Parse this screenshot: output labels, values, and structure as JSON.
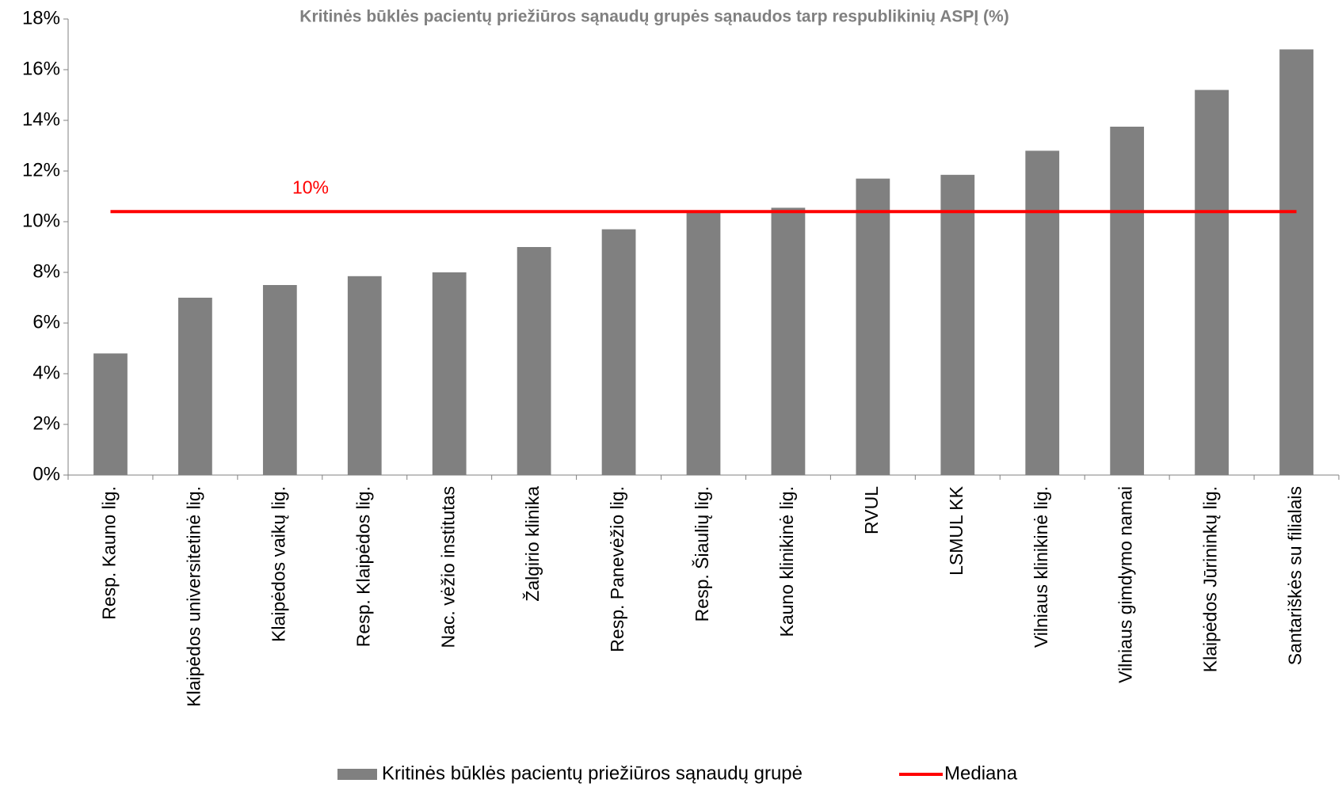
{
  "chart_data": {
    "type": "bar",
    "title": "Kritinės būklės pacientų priežiūros sąnaudų grupės sąnaudos tarp respublikinių ASPĮ (%)",
    "categories": [
      "Resp. Kauno lig.",
      "Klaipėdos universitetinė lig.",
      "Klaipėdos vaikų lig.",
      "Resp. Klaipėdos lig.",
      "Nac. vėžio institutas",
      "Žalgirio klinika",
      "Resp. Panevėžio lig.",
      "Resp. Šiaulių lig.",
      "Kauno klinikinė lig.",
      "RVUL",
      "LSMUL KK",
      "Vilniaus klinikinė lig.",
      "Vilniaus gimdymo namai",
      "Klaipėdos Jūrininkų lig.",
      "Santariškės su filialais"
    ],
    "series": [
      {
        "name": "Kritinės būklės pacientų priežiūros sąnaudų grupė",
        "color": "#808080",
        "values": [
          4.8,
          7.0,
          7.5,
          7.85,
          8.0,
          9.0,
          9.7,
          10.4,
          10.55,
          11.7,
          11.85,
          12.8,
          13.75,
          15.2,
          16.8
        ]
      }
    ],
    "median": {
      "name": "Mediana",
      "value": 10.4,
      "label": "10%",
      "color": "#ff0000"
    },
    "ylim": [
      0,
      18
    ],
    "yticks": [
      {
        "value": 0,
        "label": "0%"
      },
      {
        "value": 2,
        "label": "2%"
      },
      {
        "value": 4,
        "label": "4%"
      },
      {
        "value": 6,
        "label": "6%"
      },
      {
        "value": 8,
        "label": "8%"
      },
      {
        "value": 10,
        "label": "10%"
      },
      {
        "value": 12,
        "label": "12%"
      },
      {
        "value": 14,
        "label": "14%"
      },
      {
        "value": 16,
        "label": "16%"
      },
      {
        "value": 18,
        "label": "18%"
      }
    ],
    "grid": false
  }
}
